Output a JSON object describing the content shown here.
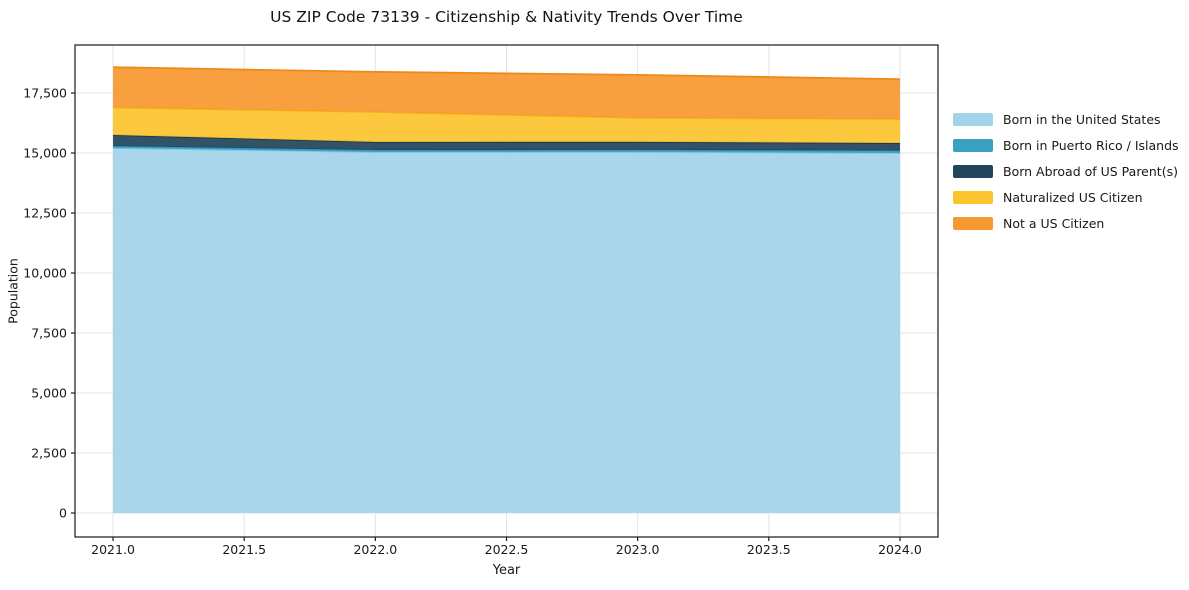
{
  "chart_data": {
    "type": "area",
    "stacked": true,
    "title": "US ZIP Code 73139 - Citizenship & Nativity Trends Over Time",
    "xlabel": "Year",
    "ylabel": "Population",
    "x": [
      2021,
      2022,
      2023,
      2024
    ],
    "series": [
      {
        "name": "Born in the United States",
        "color": "#A3D3E9",
        "edge": "#84C5E2",
        "values": [
          15210,
          15040,
          15045,
          15000
        ]
      },
      {
        "name": "Born in Puerto Rico / Islands",
        "color": "#39A0C2",
        "edge": "#2C93B6",
        "values": [
          80,
          85,
          85,
          105
        ]
      },
      {
        "name": "Born Abroad of US Parent(s)",
        "color": "#21455B",
        "edge": "#16394E",
        "values": [
          460,
          335,
          335,
          310
        ]
      },
      {
        "name": "Naturalized US Citizen",
        "color": "#FCC42F",
        "edge": "#F4B70D",
        "values": [
          1145,
          1250,
          1000,
          1000
        ]
      },
      {
        "name": "Not a US Citizen",
        "color": "#F79831",
        "edge": "#EE8A1A",
        "values": [
          1680,
          1670,
          1790,
          1660
        ]
      }
    ],
    "xlim": [
      2020.855,
      2024.145
    ],
    "ylim": [
      -1000,
      19500
    ],
    "xticks": {
      "values": [
        2021,
        2021.5,
        2022,
        2022.5,
        2023,
        2023.5,
        2024
      ],
      "labels": [
        "2021.0",
        "2021.5",
        "2022.0",
        "2022.5",
        "2023.0",
        "2023.5",
        "2024.0"
      ]
    },
    "yticks": {
      "values": [
        0,
        2500,
        5000,
        7500,
        10000,
        12500,
        15000,
        17500
      ],
      "labels": [
        "0",
        "2,500",
        "5,000",
        "7,500",
        "10,000",
        "12,500",
        "15,000",
        "17,500"
      ]
    },
    "grid": true,
    "legend_position": "right-outside"
  },
  "colors": {
    "background": "#FFFFFF",
    "grid": "#E4E4E4",
    "spine": "#2A2A2A",
    "tick": "#1A1A1A",
    "text": "#191919"
  }
}
